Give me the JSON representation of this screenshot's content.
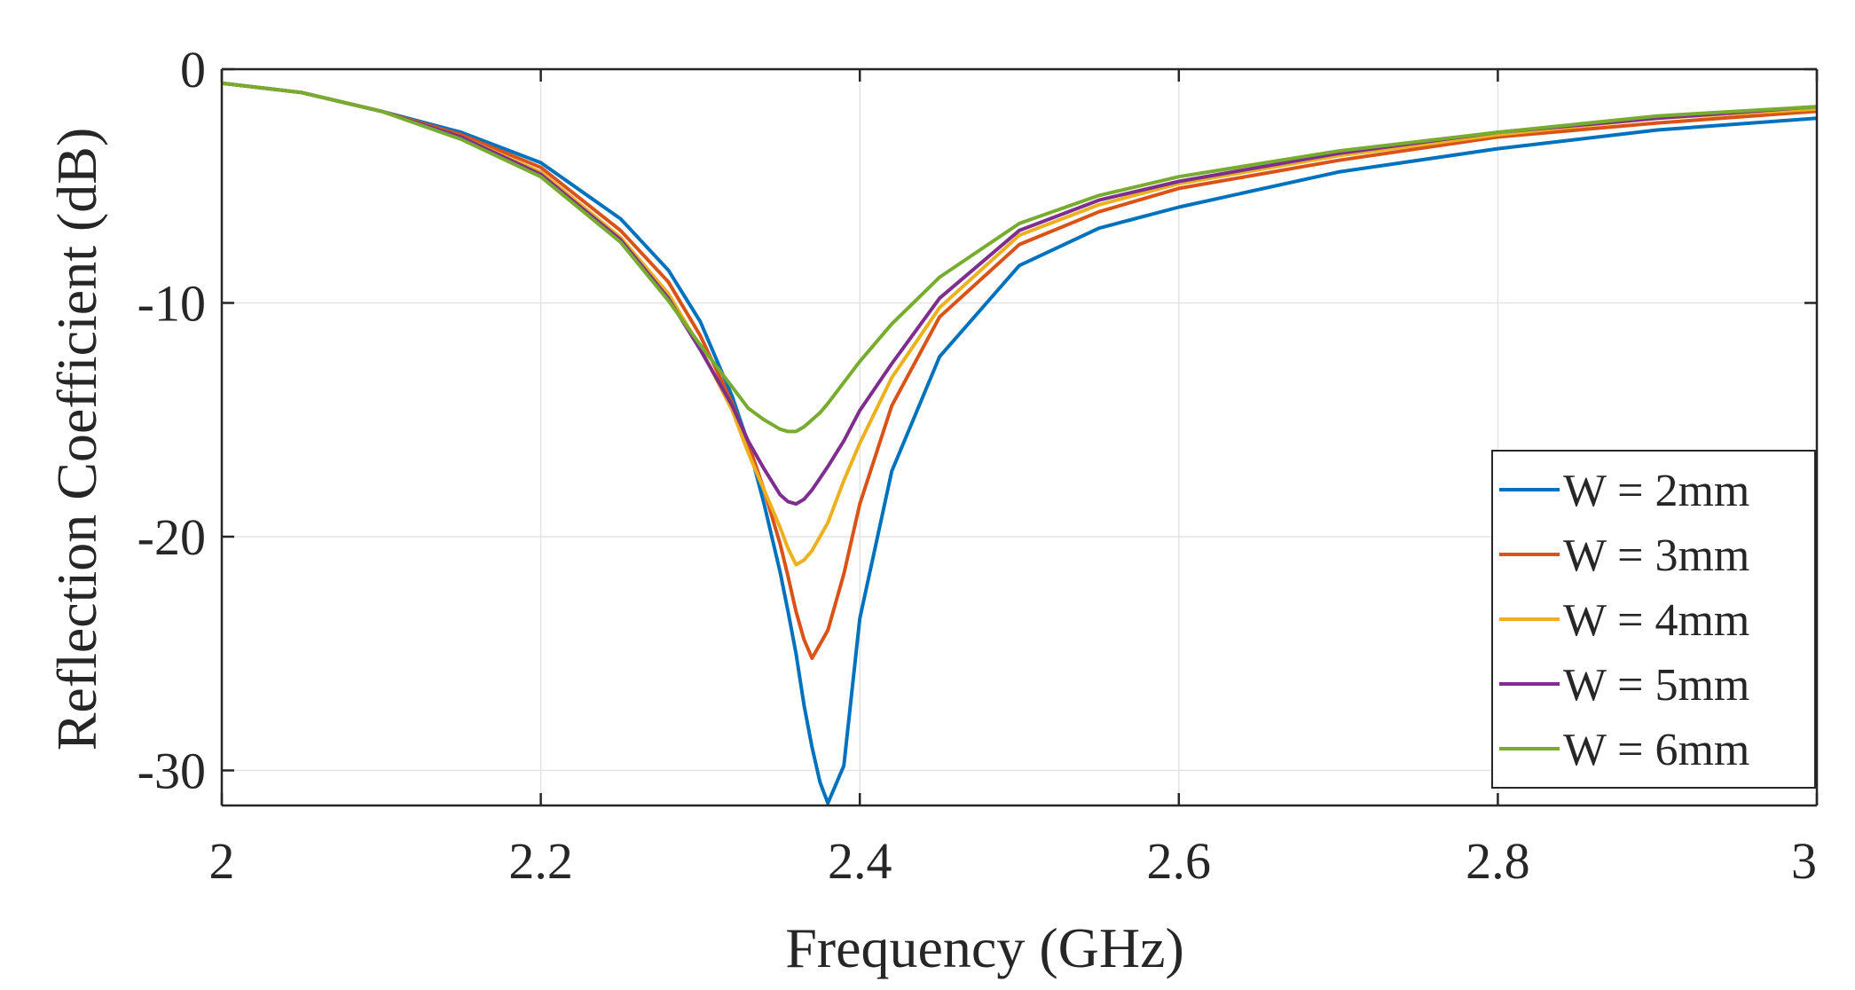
{
  "chart_data": {
    "type": "line",
    "title": "",
    "xlabel": "Frequency (GHz)",
    "ylabel": "Reflection Coefficient (dB)",
    "xlim": [
      2,
      3
    ],
    "ylim": [
      -31.5,
      0
    ],
    "xticks": [
      "2",
      "2.2",
      "2.4",
      "2.6",
      "2.8",
      "3"
    ],
    "yticks": [
      "0",
      "-10",
      "-20",
      "-30"
    ],
    "xtick_values": [
      2,
      2.2,
      2.4,
      2.6,
      2.8,
      3
    ],
    "ytick_values": [
      0,
      -10,
      -20,
      -30
    ],
    "grid": true,
    "legend_position": "bottom-right",
    "x": [
      2.0,
      2.05,
      2.1,
      2.15,
      2.2,
      2.25,
      2.28,
      2.3,
      2.32,
      2.33,
      2.34,
      2.35,
      2.355,
      2.36,
      2.365,
      2.37,
      2.375,
      2.38,
      2.39,
      2.4,
      2.42,
      2.45,
      2.5,
      2.55,
      2.6,
      2.7,
      2.8,
      2.9,
      3.0
    ],
    "series": [
      {
        "name": "W = 2mm",
        "color": "#0072BD",
        "values": [
          -0.6,
          -1.0,
          -1.8,
          -2.7,
          -4.0,
          -6.4,
          -8.6,
          -10.8,
          -14.0,
          -16.0,
          -18.6,
          -21.5,
          -23.2,
          -25.0,
          -27.2,
          -29.0,
          -30.5,
          -31.4,
          -29.8,
          -23.5,
          -17.2,
          -12.3,
          -8.4,
          -6.8,
          -5.9,
          -4.4,
          -3.4,
          -2.6,
          -2.1
        ]
      },
      {
        "name": "W = 3mm",
        "color": "#D95319",
        "values": [
          -0.6,
          -1.0,
          -1.8,
          -2.8,
          -4.2,
          -6.9,
          -9.1,
          -11.4,
          -14.3,
          -16.0,
          -18.0,
          -20.3,
          -21.7,
          -23.2,
          -24.4,
          -25.2,
          -24.6,
          -24.0,
          -21.6,
          -18.6,
          -14.4,
          -10.6,
          -7.5,
          -6.1,
          -5.1,
          -3.9,
          -2.9,
          -2.3,
          -1.8
        ]
      },
      {
        "name": "W = 4mm",
        "color": "#EDB120",
        "values": [
          -0.6,
          -1.0,
          -1.8,
          -2.9,
          -4.4,
          -7.2,
          -9.6,
          -11.9,
          -14.6,
          -16.4,
          -18.0,
          -19.6,
          -20.5,
          -21.2,
          -21.0,
          -20.6,
          -20.0,
          -19.4,
          -17.6,
          -16.0,
          -13.2,
          -10.2,
          -7.1,
          -5.8,
          -4.9,
          -3.7,
          -2.8,
          -2.1,
          -1.7
        ]
      },
      {
        "name": "W = 5mm",
        "color": "#7E2F8E",
        "values": [
          -0.6,
          -1.0,
          -1.8,
          -2.9,
          -4.5,
          -7.3,
          -9.8,
          -12.0,
          -14.4,
          -15.9,
          -17.1,
          -18.2,
          -18.5,
          -18.6,
          -18.4,
          -18.0,
          -17.5,
          -17.0,
          -15.9,
          -14.6,
          -12.6,
          -9.8,
          -6.9,
          -5.6,
          -4.8,
          -3.6,
          -2.7,
          -2.1,
          -1.6
        ]
      },
      {
        "name": "W = 6mm",
        "color": "#77AC30",
        "values": [
          -0.6,
          -1.0,
          -1.8,
          -3.0,
          -4.6,
          -7.4,
          -9.9,
          -11.8,
          -13.6,
          -14.5,
          -15.0,
          -15.4,
          -15.5,
          -15.5,
          -15.3,
          -15.0,
          -14.7,
          -14.3,
          -13.4,
          -12.5,
          -10.9,
          -8.9,
          -6.6,
          -5.4,
          -4.6,
          -3.5,
          -2.7,
          -2.0,
          -1.6
        ]
      }
    ]
  }
}
